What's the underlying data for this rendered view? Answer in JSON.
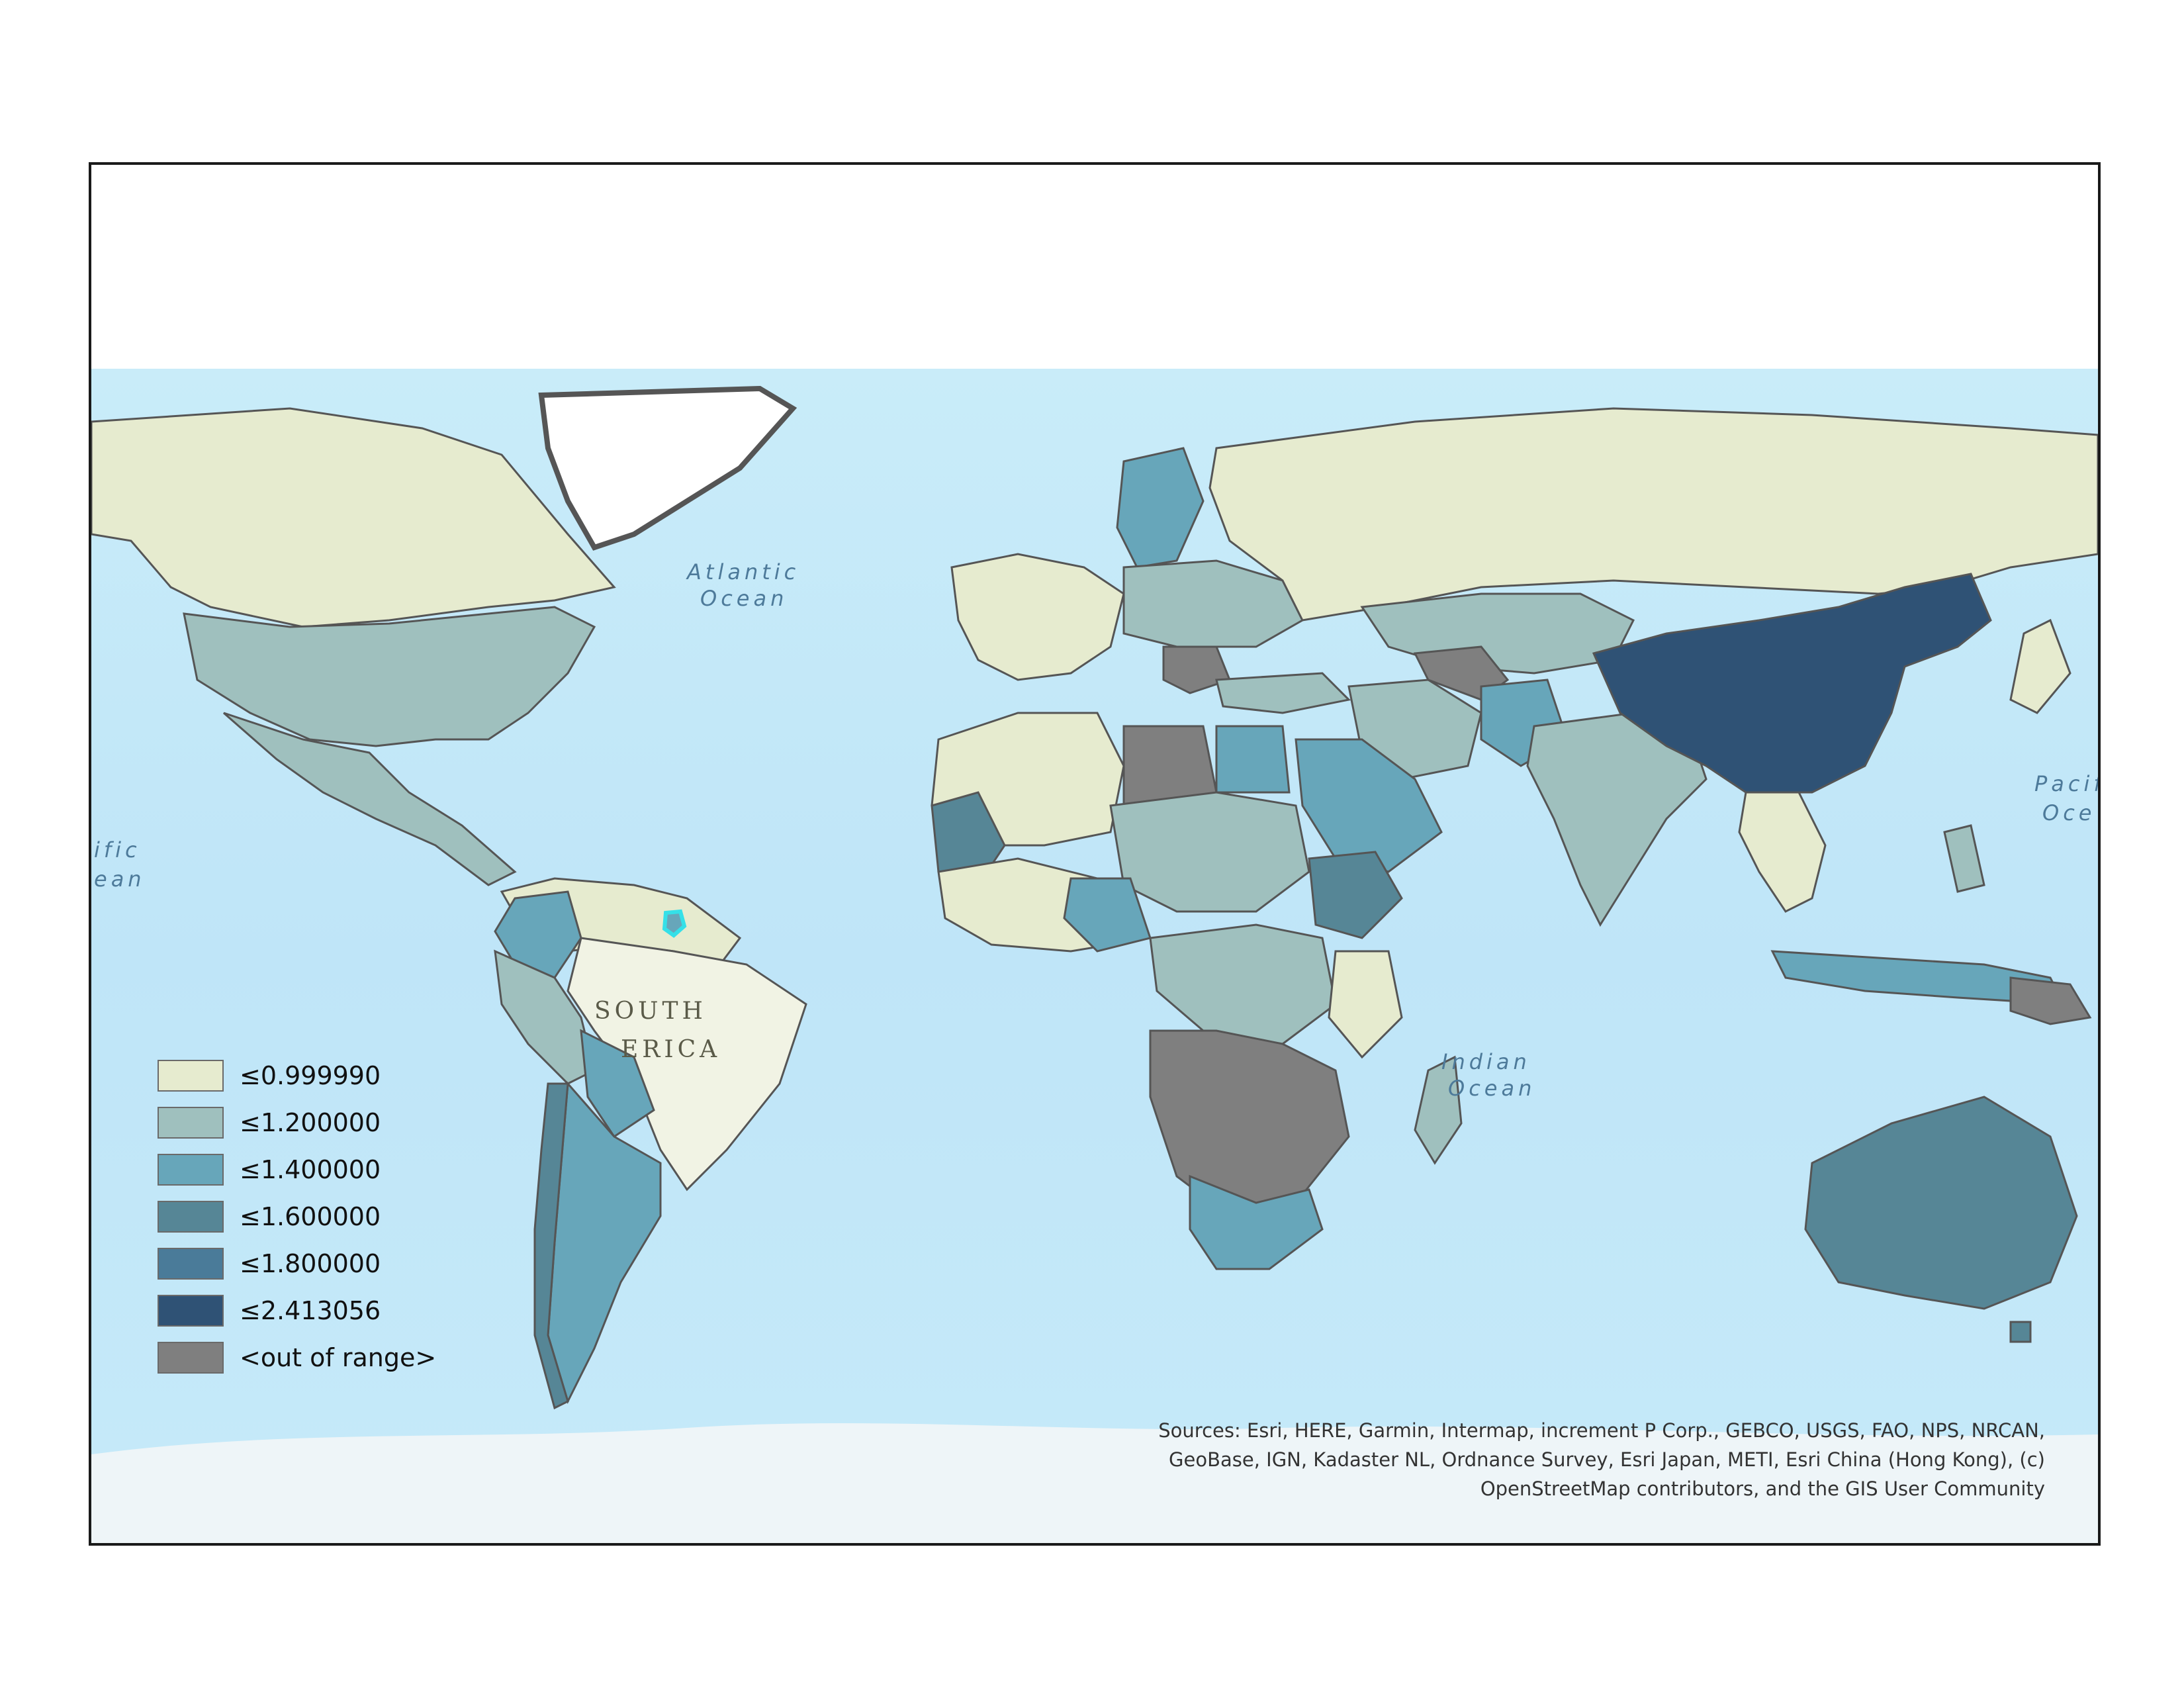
{
  "legend": {
    "items": [
      {
        "label": "≤0.999990",
        "color": "#e6ebcf"
      },
      {
        "label": "≤1.200000",
        "color": "#9fc0be"
      },
      {
        "label": "≤1.400000",
        "color": "#67a6ba"
      },
      {
        "label": "≤1.600000",
        "color": "#568696"
      },
      {
        "label": "≤1.800000",
        "color": "#4a7b99"
      },
      {
        "label": "≤2.413056",
        "color": "#2f5275"
      },
      {
        "label": "<out of range>",
        "color": "#7f7f7f"
      }
    ]
  },
  "map_labels": {
    "atlantic_1": "Atlantic",
    "atlantic_2": "Ocean",
    "indian_1": "Indian",
    "indian_2": "Ocean",
    "pacific_left_1": "ific",
    "pacific_left_2": "ean",
    "pacific_right_1": "Pacif",
    "pacific_right_2": "Oce",
    "south_america_1": "SOUTH",
    "south_america_2": "ERICA"
  },
  "attribution": {
    "line1": "Sources: Esri, HERE, Garmin, Intermap, increment P Corp., GEBCO, USGS, FAO, NPS, NRCAN,",
    "line2": "GeoBase, IGN, Kadaster NL, Ordnance Survey, Esri Japan, METI, Esri China (Hong Kong), (c)",
    "line3": "OpenStreetMap contributors, and the GIS User Community"
  },
  "colors": {
    "ocean": "#bfe6f7",
    "shallow": "#d8f1fb",
    "ice": "#f4f8fa",
    "border": "#555555",
    "highlight": "#35e0e8"
  }
}
